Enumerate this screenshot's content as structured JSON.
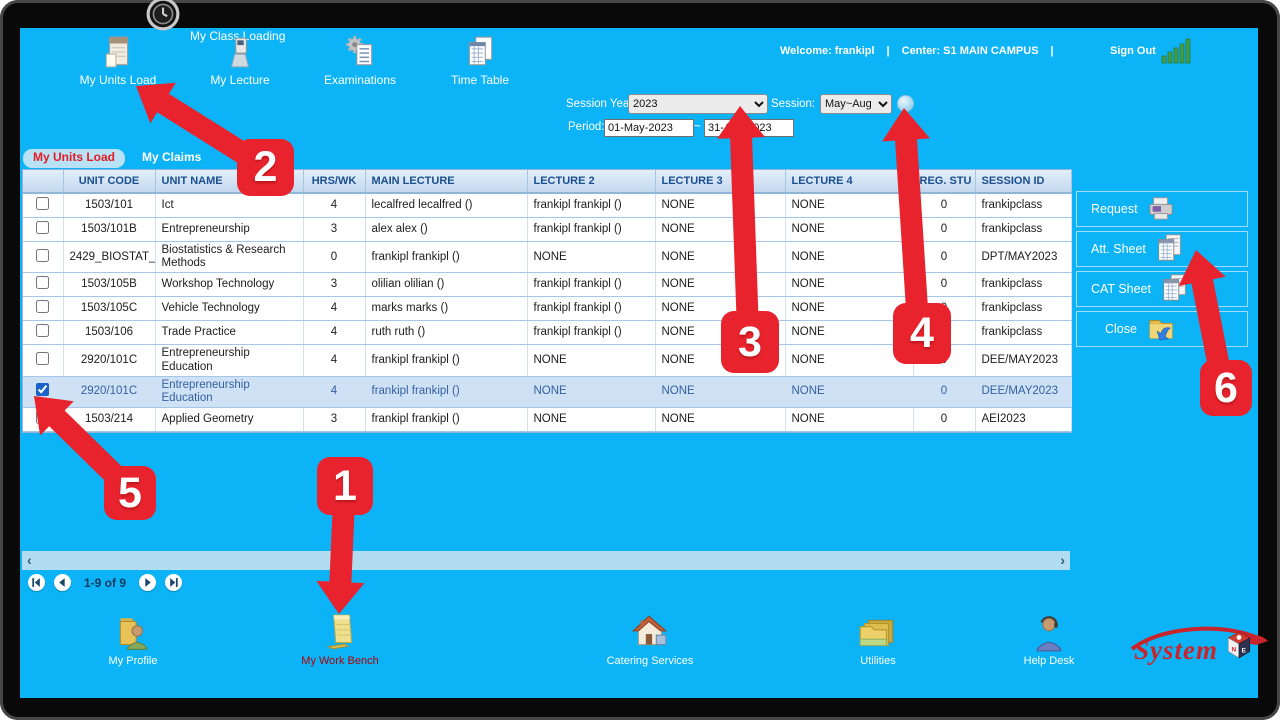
{
  "titlebar": {
    "clock_icon": "clock-icon"
  },
  "header": {
    "title": "My Class Loading",
    "nav": [
      {
        "label": "My Units Load",
        "icon": "notepad-icon"
      },
      {
        "label": "My Lecture",
        "icon": "lectern-icon"
      },
      {
        "label": "Examinations",
        "icon": "gear-list-icon"
      },
      {
        "label": "Time Table",
        "icon": "grid-pages-icon"
      }
    ],
    "welcome": "Welcome: frankipl",
    "separator": "|",
    "center": "Center: S1 MAIN CAMPUS",
    "sign_out": "Sign Out",
    "signal_icon": "signal-bars-icon"
  },
  "filters": {
    "session_year_label": "Session Year:",
    "session_year_value": "2023",
    "session_label": "Session:",
    "session_value": "May~Aug",
    "lookup_icon": "lookup-ball-icon",
    "period_label": "Period:",
    "period_from": "01-May-2023",
    "period_tilde": "~",
    "period_to": "31-Aug-2023"
  },
  "tabs": [
    {
      "label": "My Units Load",
      "active": true
    },
    {
      "label": "My Claims",
      "active": false
    }
  ],
  "table": {
    "columns": [
      "",
      "UNIT CODE",
      "UNIT NAME",
      "HRS/WK",
      "MAIN LECTURE",
      "LECTURE 2",
      "LECTURE 3",
      "LECTURE 4",
      "REG. STU",
      "SESSION ID"
    ],
    "rows": [
      {
        "checked": false,
        "selected": false,
        "cells": [
          "1503/101",
          "Ict",
          "4",
          "lecalfred lecalfred ()",
          "frankipl frankipl ()",
          "NONE",
          "NONE",
          "0",
          "frankipclass"
        ]
      },
      {
        "checked": false,
        "selected": false,
        "cells": [
          "1503/101B",
          "Entrepreneurship",
          "3",
          "alex alex ()",
          "frankipl frankipl ()",
          "NONE",
          "NONE",
          "0",
          "frankipclass"
        ]
      },
      {
        "checked": false,
        "selected": false,
        "cells": [
          "2429_BIOSTAT_",
          "Biostatistics & Research Methods",
          "0",
          "frankipl frankipl ()",
          "NONE",
          "NONE",
          "NONE",
          "0",
          "DPT/MAY2023"
        ]
      },
      {
        "checked": false,
        "selected": false,
        "cells": [
          "1503/105B",
          "Workshop Technology",
          "3",
          "olilian olilian ()",
          "frankipl frankipl ()",
          "NONE",
          "NONE",
          "0",
          "frankipclass"
        ]
      },
      {
        "checked": false,
        "selected": false,
        "cells": [
          "1503/105C",
          "Vehicle Technology",
          "4",
          "marks marks ()",
          "frankipl frankipl ()",
          "NONE",
          "NONE",
          "0",
          "frankipclass"
        ]
      },
      {
        "checked": false,
        "selected": false,
        "cells": [
          "1503/106",
          "Trade Practice",
          "4",
          "ruth ruth ()",
          "frankipl frankipl ()",
          "NONE",
          "NONE",
          "0",
          "frankipclass"
        ]
      },
      {
        "checked": false,
        "selected": false,
        "cells": [
          "2920/101C",
          "Entrepreneurship Education",
          "4",
          "frankipl frankipl ()",
          "NONE",
          "NONE",
          "NONE",
          "0",
          "DEE/MAY2023"
        ]
      },
      {
        "checked": true,
        "selected": true,
        "cells": [
          "2920/101C",
          "Entrepreneurship Education",
          "4",
          "frankipl frankipl ()",
          "NONE",
          "NONE",
          "NONE",
          "0",
          "DEE/MAY2023"
        ]
      },
      {
        "checked": false,
        "selected": false,
        "cells": [
          "1503/214",
          "Applied Geometry",
          "3",
          "frankipl frankipl ()",
          "NONE",
          "NONE",
          "NONE",
          "0",
          "AEI2023"
        ]
      }
    ]
  },
  "side_actions": [
    {
      "label": "Request",
      "icon": "printer-icon"
    },
    {
      "label": "Att. Sheet",
      "icon": "sheet-icon"
    },
    {
      "label": "CAT Sheet",
      "icon": "sheet-icon"
    },
    {
      "label": "Close",
      "icon": "folder-arrow-icon"
    }
  ],
  "scrollbar": {
    "left_arrow": "‹",
    "right_arrow": "›"
  },
  "pagination": {
    "status": "1-9 of 9"
  },
  "toolbar": [
    {
      "label": "My Profile",
      "icon": "profile-folder-icon",
      "highlight": false
    },
    {
      "label": "My Work Bench",
      "icon": "workbench-icon",
      "highlight": true
    },
    {
      "label": "Catering Services",
      "icon": "house-icon",
      "highlight": false
    },
    {
      "label": "Utilities",
      "icon": "folders-icon",
      "highlight": false
    },
    {
      "label": "Help Desk",
      "icon": "helpdesk-icon",
      "highlight": false
    }
  ],
  "logo": {
    "text": "System",
    "cube_icon": "cube-icon"
  },
  "annotations": [
    {
      "label": "1"
    },
    {
      "label": "2"
    },
    {
      "label": "3"
    },
    {
      "label": "4"
    },
    {
      "label": "5"
    },
    {
      "label": "6"
    }
  ],
  "colors": {
    "screen_bg": "#0cb4f7",
    "accent_red": "#e8232d",
    "table_header_text": "#1c4f8f",
    "selected_row_bg": "#cfe1f5",
    "selected_row_text": "#33619f",
    "active_tab_text": "#e31b23"
  }
}
